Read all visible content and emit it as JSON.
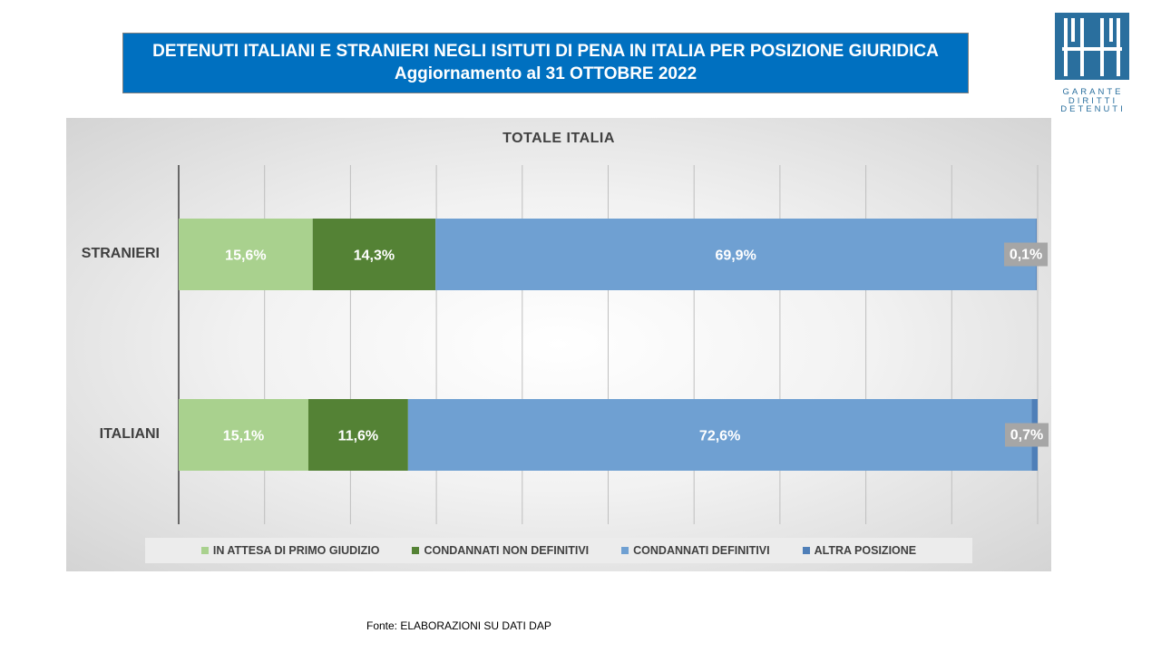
{
  "header": {
    "title_line1": "DETENUTI ITALIANI E STRANIERI NEGLI ISITUTI DI PENA IN ITALIA PER POSIZIONE GIURIDICA",
    "title_line2": "Aggiornamento al 31 OTTOBRE 2022"
  },
  "logo": {
    "lines": [
      "GARANTE",
      "DIRITTI",
      "DETENUTI"
    ],
    "color": "#2a6f9e"
  },
  "source": {
    "label": "Fonte:",
    "text": "ELABORAZIONI SU DATI DAP"
  },
  "chart_data": {
    "type": "bar",
    "orientation": "horizontal",
    "stacked": true,
    "title": "TOTALE  ITALIA",
    "categories": [
      "STRANIERI",
      "ITALIANI"
    ],
    "xlim": [
      0,
      100
    ],
    "grid": true,
    "legend_position": "bottom",
    "series": [
      {
        "name": "IN ATTESA DI PRIMO GIUDIZIO",
        "color": "#a9d18e",
        "values": [
          15.6,
          15.1
        ],
        "labels": [
          "15,6%",
          "15,1%"
        ]
      },
      {
        "name": "CONDANNATI NON DEFINITIVI",
        "color": "#548235",
        "values": [
          14.3,
          11.6
        ],
        "labels": [
          "14,3%",
          "11,6%"
        ]
      },
      {
        "name": "CONDANNATI DEFINITIVI",
        "color": "#6fa0d2",
        "values": [
          69.9,
          72.6
        ],
        "labels": [
          "69,9%",
          "72,6%"
        ]
      },
      {
        "name": "ALTRA POSIZIONE",
        "color": "#4f7fb8",
        "values": [
          0.1,
          0.7
        ],
        "labels": [
          "0,1%",
          "0,7%"
        ]
      }
    ]
  }
}
